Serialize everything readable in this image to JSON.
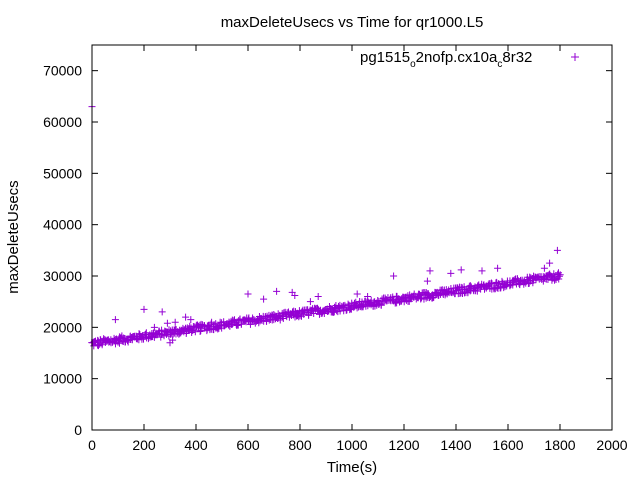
{
  "chart_data": {
    "type": "scatter",
    "title": "maxDeleteUsecs vs Time for qr1000.L5",
    "xlabel": "Time(s)",
    "ylabel": "maxDeleteUsecs",
    "xlim": [
      0,
      2000
    ],
    "ylim": [
      0,
      75000
    ],
    "xticks": [
      "0",
      "200",
      "400",
      "600",
      "800",
      "1000",
      "1200",
      "1400",
      "1600",
      "1800",
      "2000"
    ],
    "yticks": [
      "0",
      "10000",
      "20000",
      "30000",
      "40000",
      "50000",
      "60000",
      "70000"
    ],
    "grid": false,
    "legend_position": "top-right",
    "series": [
      {
        "name_parts": [
          "pg1515",
          "o",
          "2nofp.cx10a",
          "c",
          "8r32"
        ],
        "color": "#9400d3",
        "marker": "plus",
        "trend": {
          "x_start": 0,
          "y_start": 16800,
          "x_end": 1800,
          "y_end": 30000,
          "band": 700,
          "step": 5
        },
        "points": [
          [
            0,
            63000
          ],
          [
            90,
            21500
          ],
          [
            200,
            23500
          ],
          [
            240,
            20000
          ],
          [
            270,
            23000
          ],
          [
            290,
            20800
          ],
          [
            300,
            17000
          ],
          [
            310,
            17500
          ],
          [
            320,
            21000
          ],
          [
            360,
            22000
          ],
          [
            380,
            21500
          ],
          [
            460,
            21000
          ],
          [
            600,
            26500
          ],
          [
            660,
            25500
          ],
          [
            710,
            27000
          ],
          [
            770,
            26800
          ],
          [
            780,
            26200
          ],
          [
            840,
            25000
          ],
          [
            870,
            26000
          ],
          [
            1020,
            26500
          ],
          [
            1060,
            26000
          ],
          [
            1160,
            30000
          ],
          [
            1290,
            29000
          ],
          [
            1300,
            31000
          ],
          [
            1380,
            30500
          ],
          [
            1420,
            31200
          ],
          [
            1500,
            31000
          ],
          [
            1560,
            31500
          ],
          [
            1740,
            31500
          ],
          [
            1760,
            32500
          ],
          [
            1790,
            35000
          ]
        ]
      }
    ]
  }
}
